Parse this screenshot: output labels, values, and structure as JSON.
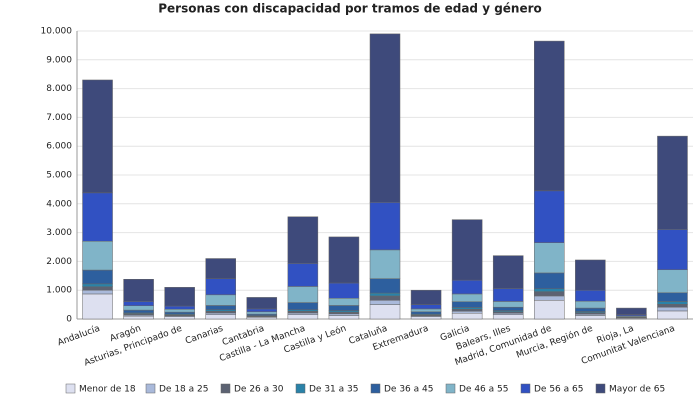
{
  "chart_data": {
    "type": "stacked-bar",
    "title": "Personas con discapacidad por tramos de edad y género",
    "categories": [
      "Andalucía",
      "Aragón",
      "Asturias, Principado de",
      "Canarias",
      "Cantabria",
      "Castilla - La Mancha",
      "Castilla y León",
      "Cataluña",
      "Extremadura",
      "Galicia",
      "Balears, Illes",
      "Madrid, Comunidad de",
      "Murcia, Región de",
      "Rioja, La",
      "Comunitat Valenciana"
    ],
    "series": [
      {
        "name": "Menor de 18",
        "color": "#dde0f0",
        "values": [
          870,
          100,
          80,
          150,
          60,
          150,
          120,
          500,
          80,
          200,
          150,
          650,
          120,
          30,
          280
        ]
      },
      {
        "name": "De 18 a 25",
        "color": "#a9b9da",
        "values": [
          130,
          40,
          30,
          60,
          20,
          60,
          60,
          150,
          30,
          70,
          50,
          150,
          50,
          10,
          130
        ]
      },
      {
        "name": "De 26 a 30",
        "color": "#5c6272",
        "values": [
          120,
          40,
          30,
          60,
          20,
          60,
          60,
          150,
          30,
          70,
          50,
          150,
          50,
          10,
          100
        ]
      },
      {
        "name": "De 31 a 35",
        "color": "#2a82a8",
        "values": [
          100,
          30,
          30,
          50,
          20,
          50,
          50,
          100,
          30,
          60,
          40,
          100,
          40,
          10,
          100
        ]
      },
      {
        "name": "De 36 a 45",
        "color": "#2d5f9e",
        "values": [
          480,
          100,
          70,
          150,
          50,
          250,
          180,
          500,
          80,
          200,
          120,
          550,
          120,
          20,
          300
        ]
      },
      {
        "name": "De 46 a 55",
        "color": "#80b4c8",
        "values": [
          1000,
          150,
          100,
          370,
          80,
          560,
          250,
          1000,
          100,
          270,
          200,
          1050,
          240,
          30,
          800
        ]
      },
      {
        "name": "De 56 a 65",
        "color": "#3151c2",
        "values": [
          1680,
          150,
          110,
          560,
          100,
          800,
          530,
          1650,
          150,
          480,
          450,
          1800,
          380,
          40,
          1400
        ]
      },
      {
        "name": "Mayor de 65",
        "color": "#3e4a7b",
        "values": [
          3920,
          770,
          650,
          700,
          400,
          1620,
          1600,
          5850,
          500,
          2100,
          1140,
          5200,
          1050,
          230,
          3240
        ]
      }
    ],
    "ylim": [
      0,
      10000
    ],
    "yticks": [
      0,
      {
        "value": 1000,
        "label": "1.000"
      },
      {
        "value": 2000,
        "label": "2.000"
      },
      {
        "value": 3000,
        "label": "3.000"
      },
      {
        "value": 4000,
        "label": "4.000"
      },
      {
        "value": 5000,
        "label": "5.000"
      },
      {
        "value": 6000,
        "label": "6.000"
      },
      {
        "value": 7000,
        "label": "7.000"
      },
      {
        "value": 8000,
        "label": "8.000"
      },
      {
        "value": 9000,
        "label": "9.000"
      },
      {
        "value": 10000,
        "label": "10.000"
      }
    ],
    "grid": true
  }
}
